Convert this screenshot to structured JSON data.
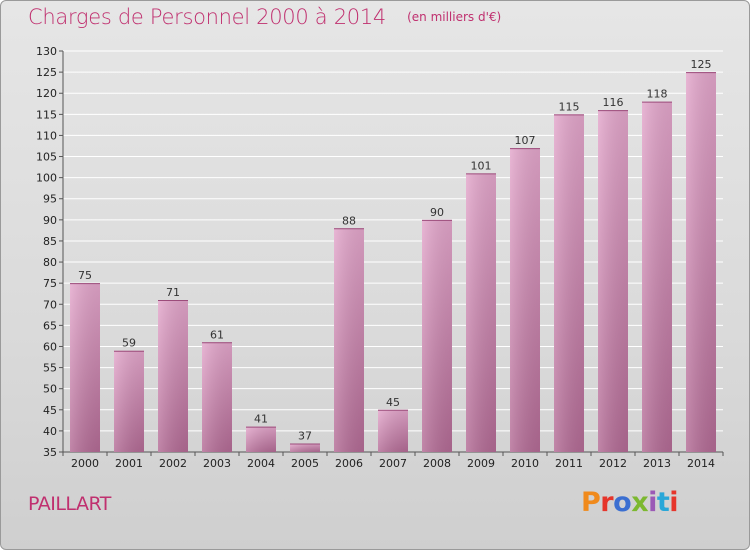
{
  "chart_data": {
    "type": "bar",
    "title": "Charges de Personnel 2000 à 2014",
    "unit": "(en milliers d'€)",
    "categories": [
      "2000",
      "2001",
      "2002",
      "2003",
      "2004",
      "2005",
      "2006",
      "2007",
      "2008",
      "2009",
      "2010",
      "2011",
      "2012",
      "2013",
      "2014"
    ],
    "values": [
      75,
      59,
      71,
      61,
      41,
      37,
      88,
      45,
      90,
      101,
      107,
      115,
      116,
      118,
      125
    ],
    "ylim": [
      35,
      130
    ],
    "yticks": [
      35,
      40,
      45,
      50,
      55,
      60,
      65,
      70,
      75,
      80,
      85,
      90,
      95,
      100,
      105,
      110,
      115,
      120,
      125,
      130
    ],
    "grid": true,
    "bar_color": "#d98ab6"
  },
  "footer": {
    "city": "PAILLART",
    "logo_text": "Proxiti"
  },
  "colors": {
    "title": "#c0306f",
    "logo": [
      "#f08a1c",
      "#e6352b",
      "#3b6fd1",
      "#7cb82f",
      "#9b59b6",
      "#2aa7d8",
      "#e6352b"
    ]
  }
}
